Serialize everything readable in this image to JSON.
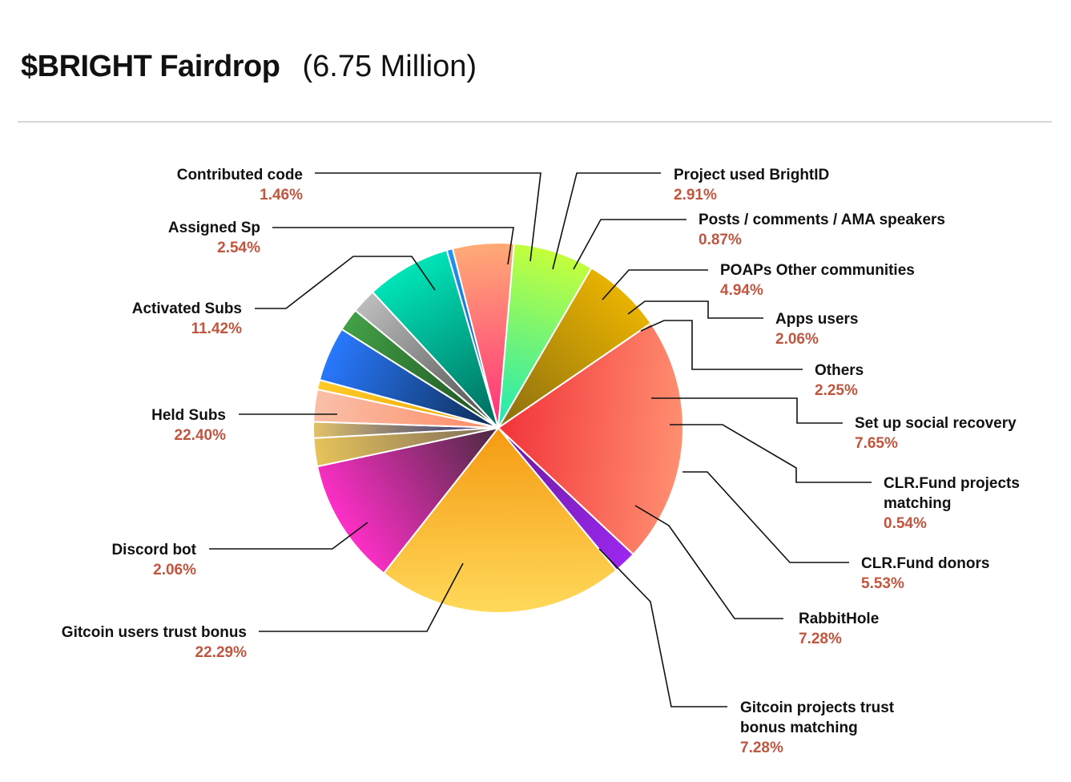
{
  "header": {
    "title": "$BRIGHT Fairdrop",
    "subtitle": "(6.75 Million)"
  },
  "chart_data": {
    "type": "pie",
    "title": "$BRIGHT Fairdrop",
    "subtitle": "(6.75 Million)",
    "unit": "%",
    "slices": [
      {
        "label": [
          "Contributed code"
        ],
        "pct_text": "1.46%",
        "value": 1.46,
        "colors": [
          "#e2c36a",
          "#1a237e"
        ]
      },
      {
        "label": [
          "Project used BrightID"
        ],
        "pct_text": "2.91%",
        "value": 2.91,
        "colors": [
          "#f9c0a8",
          "#ff8a65"
        ]
      },
      {
        "label": [
          "Posts / comments / AMA speakers"
        ],
        "pct_text": "0.87%",
        "value": 0.87,
        "colors": [
          "#ffca28",
          "#f0a500"
        ]
      },
      {
        "label": [
          "POAPs Other communities"
        ],
        "pct_text": "4.94%",
        "value": 4.94,
        "colors": [
          "#2979ff",
          "#0d2b4f"
        ]
      },
      {
        "label": [
          "Apps users"
        ],
        "pct_text": "2.06%",
        "value": 2.06,
        "colors": [
          "#43a047",
          "#1b4d1e"
        ]
      },
      {
        "label": [
          "Others"
        ],
        "pct_text": "2.25%",
        "value": 2.25,
        "colors": [
          "#bdbdbd",
          "#4a4a4a"
        ]
      },
      {
        "label": [
          "Set up social recovery"
        ],
        "pct_text": "7.65%",
        "value": 7.65,
        "colors": [
          "#00e5b8",
          "#00695c"
        ]
      },
      {
        "label": [
          "CLR.Fund projects",
          "matching"
        ],
        "pct_text": "0.54%",
        "value": 0.54,
        "colors": [
          "#2196f3",
          "#0d47a1"
        ]
      },
      {
        "label": [
          "CLR.Fund donors"
        ],
        "pct_text": "5.53%",
        "value": 5.53,
        "colors": [
          "#ffab76",
          "#ff2f7a"
        ]
      },
      {
        "label": [
          "RabbitHole"
        ],
        "pct_text": "7.28%",
        "value": 7.28,
        "colors": [
          "#c6ff3a",
          "#1de9b6"
        ]
      },
      {
        "label": [
          "Gitcoin projects trust",
          "bonus matching"
        ],
        "pct_text": "7.28%",
        "value": 7.28,
        "colors": [
          "#e9b300",
          "#8a6d10"
        ]
      },
      {
        "label": [
          "Gitcoin users trust bonus"
        ],
        "pct_text": "22.29%",
        "value": 22.29,
        "colors": [
          "#ff8f70",
          "#f2333a"
        ]
      },
      {
        "label": [
          "Discord bot"
        ],
        "pct_text": "2.06%",
        "value": 2.06,
        "colors": [
          "#9c27f0",
          "#6a1b9a"
        ]
      },
      {
        "label": [
          "Held Subs"
        ],
        "pct_text": "22.40%",
        "value": 22.4,
        "colors": [
          "#ffd95a",
          "#f59a12"
        ]
      },
      {
        "label": [
          "Activated Subs"
        ],
        "pct_text": "11.42%",
        "value": 11.42,
        "colors": [
          "#ff2fc8",
          "#4a2a40"
        ]
      },
      {
        "label": [
          "Assigned Sp"
        ],
        "pct_text": "2.54%",
        "value": 2.54,
        "colors": [
          "#e7c35a",
          "#7a6a5a"
        ]
      }
    ]
  }
}
